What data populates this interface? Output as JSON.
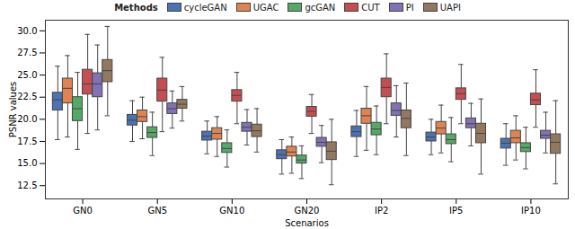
{
  "chart_data": {
    "type": "box",
    "xlabel": "Scenarios",
    "ylabel": "PSNR values",
    "legend_title": "Methods",
    "legend": "upper center",
    "grid": false,
    "categories": [
      "GN0",
      "GN5",
      "GN10",
      "GN20",
      "IP2",
      "IP5",
      "IP10"
    ],
    "ylim": [
      11.0,
      31.2
    ],
    "yticks": [
      12.5,
      {
        "value": 15,
        "label": "15.0"
      },
      17.5,
      {
        "value": 20,
        "label": "20.0"
      },
      22.5,
      {
        "value": 25,
        "label": "25.0"
      },
      27.5,
      {
        "value": 30,
        "label": "30.0"
      }
    ],
    "series": [
      {
        "name": "cycleGAN",
        "color": "#4c72b0",
        "values": [
          {
            "min": 17.7,
            "q1": 21.0,
            "median": 22.2,
            "q3": 23.0,
            "max": 26.0
          },
          {
            "min": 17.5,
            "q1": 19.3,
            "median": 19.9,
            "q3": 20.5,
            "max": 22.1
          },
          {
            "min": 16.1,
            "q1": 17.6,
            "median": 18.1,
            "q3": 18.6,
            "max": 19.8
          },
          {
            "min": 13.8,
            "q1": 15.5,
            "median": 16.0,
            "q3": 16.5,
            "max": 17.7
          },
          {
            "min": 15.8,
            "q1": 18.0,
            "median": 18.6,
            "q3": 19.2,
            "max": 21.0
          },
          {
            "min": 16.0,
            "q1": 17.5,
            "median": 18.0,
            "q3": 18.5,
            "max": 20.0
          },
          {
            "min": 14.8,
            "q1": 16.7,
            "median": 17.3,
            "q3": 17.8,
            "max": 19.5
          }
        ]
      },
      {
        "name": "UGAC",
        "color": "#dd8452",
        "values": [
          {
            "min": 18.0,
            "q1": 21.8,
            "median": 23.5,
            "q3": 24.6,
            "max": 27.2
          },
          {
            "min": 17.8,
            "q1": 19.7,
            "median": 20.3,
            "q3": 21.0,
            "max": 22.5
          },
          {
            "min": 15.8,
            "q1": 17.7,
            "median": 18.4,
            "q3": 19.0,
            "max": 20.3
          },
          {
            "min": 13.9,
            "q1": 15.8,
            "median": 16.3,
            "q3": 16.9,
            "max": 18.0
          },
          {
            "min": 16.5,
            "q1": 19.5,
            "median": 20.4,
            "q3": 21.2,
            "max": 23.7
          },
          {
            "min": 16.2,
            "q1": 18.3,
            "median": 19.0,
            "q3": 19.7,
            "max": 21.6
          },
          {
            "min": 15.4,
            "q1": 17.3,
            "median": 17.9,
            "q3": 18.7,
            "max": 20.4
          }
        ]
      },
      {
        "name": "gcGAN",
        "color": "#55a868",
        "values": [
          {
            "min": 16.6,
            "q1": 19.8,
            "median": 21.2,
            "q3": 22.5,
            "max": 25.3
          },
          {
            "min": 15.9,
            "q1": 17.9,
            "median": 18.5,
            "q3": 19.1,
            "max": 20.8
          },
          {
            "min": 14.6,
            "q1": 16.2,
            "median": 16.7,
            "q3": 17.3,
            "max": 18.8
          },
          {
            "min": 13.3,
            "q1": 15.0,
            "median": 15.4,
            "q3": 15.9,
            "max": 17.0
          },
          {
            "min": 16.0,
            "q1": 18.2,
            "median": 18.9,
            "q3": 19.6,
            "max": 21.5
          },
          {
            "min": 15.2,
            "q1": 17.2,
            "median": 17.7,
            "q3": 18.3,
            "max": 20.2
          },
          {
            "min": 14.4,
            "q1": 16.3,
            "median": 16.8,
            "q3": 17.3,
            "max": 19.1
          }
        ]
      },
      {
        "name": "CUT",
        "color": "#c44e52",
        "values": [
          {
            "min": 18.4,
            "q1": 22.8,
            "median": 24.0,
            "q3": 25.6,
            "max": 29.6
          },
          {
            "min": 18.6,
            "q1": 22.0,
            "median": 23.3,
            "q3": 24.6,
            "max": 27.0
          },
          {
            "min": 19.5,
            "q1": 22.0,
            "median": 22.7,
            "q3": 23.3,
            "max": 25.3
          },
          {
            "min": 18.4,
            "q1": 20.3,
            "median": 20.9,
            "q3": 21.4,
            "max": 22.8
          },
          {
            "min": 19.5,
            "q1": 22.5,
            "median": 23.6,
            "q3": 24.6,
            "max": 27.4
          },
          {
            "min": 19.5,
            "q1": 22.2,
            "median": 22.9,
            "q3": 23.5,
            "max": 26.2
          },
          {
            "min": 19.1,
            "q1": 21.6,
            "median": 22.2,
            "q3": 22.9,
            "max": 25.6
          }
        ]
      },
      {
        "name": "PI",
        "color": "#8172b3",
        "values": [
          {
            "min": 18.8,
            "q1": 22.5,
            "median": 24.0,
            "q3": 25.2,
            "max": 28.4
          },
          {
            "min": 19.0,
            "q1": 20.6,
            "median": 21.2,
            "q3": 21.8,
            "max": 23.2
          },
          {
            "min": 17.1,
            "q1": 18.6,
            "median": 19.1,
            "q3": 19.6,
            "max": 21.1
          },
          {
            "min": 15.1,
            "q1": 16.9,
            "median": 17.4,
            "q3": 17.9,
            "max": 19.3
          },
          {
            "min": 18.0,
            "q1": 20.4,
            "median": 21.0,
            "q3": 21.8,
            "max": 23.8
          },
          {
            "min": 17.0,
            "q1": 19.0,
            "median": 19.5,
            "q3": 20.1,
            "max": 21.8
          },
          {
            "min": 16.2,
            "q1": 17.8,
            "median": 18.2,
            "q3": 18.7,
            "max": 20.8
          }
        ]
      },
      {
        "name": "UAPI",
        "color": "#937860",
        "values": [
          {
            "min": 20.4,
            "q1": 24.2,
            "median": 25.5,
            "q3": 26.7,
            "max": 30.5
          },
          {
            "min": 19.8,
            "q1": 21.2,
            "median": 21.7,
            "q3": 22.2,
            "max": 23.7
          },
          {
            "min": 16.3,
            "q1": 18.0,
            "median": 18.7,
            "q3": 19.4,
            "max": 21.2
          },
          {
            "min": 12.6,
            "q1": 15.4,
            "median": 16.4,
            "q3": 17.4,
            "max": 20.0
          },
          {
            "min": 15.9,
            "q1": 19.0,
            "median": 20.1,
            "q3": 21.0,
            "max": 24.1
          },
          {
            "min": 13.8,
            "q1": 17.3,
            "median": 18.4,
            "q3": 19.5,
            "max": 22.3
          },
          {
            "min": 12.7,
            "q1": 16.1,
            "median": 17.4,
            "q3": 18.3,
            "max": 22.1
          }
        ]
      }
    ]
  }
}
